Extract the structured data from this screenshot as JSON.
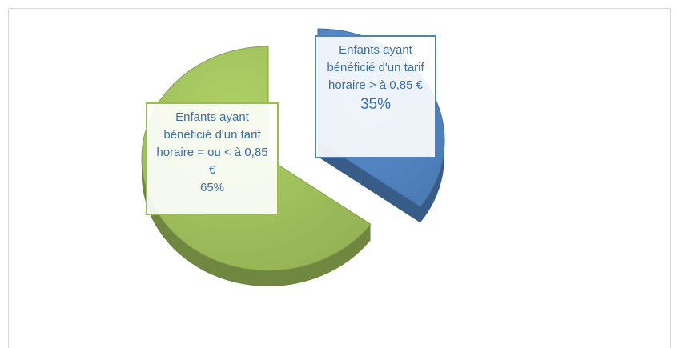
{
  "chart_data": {
    "type": "pie",
    "categories": [
      "Enfants ayant bénéficié d'un tarif horaire > à 0,85 €",
      "Enfants ayant bénéficié d'un tarif horaire = ou < à 0,85 €"
    ],
    "values": [
      35,
      65
    ],
    "value_labels": [
      "35%",
      "65%"
    ],
    "colors": [
      "#4f81bd",
      "#9bbb59"
    ]
  }
}
